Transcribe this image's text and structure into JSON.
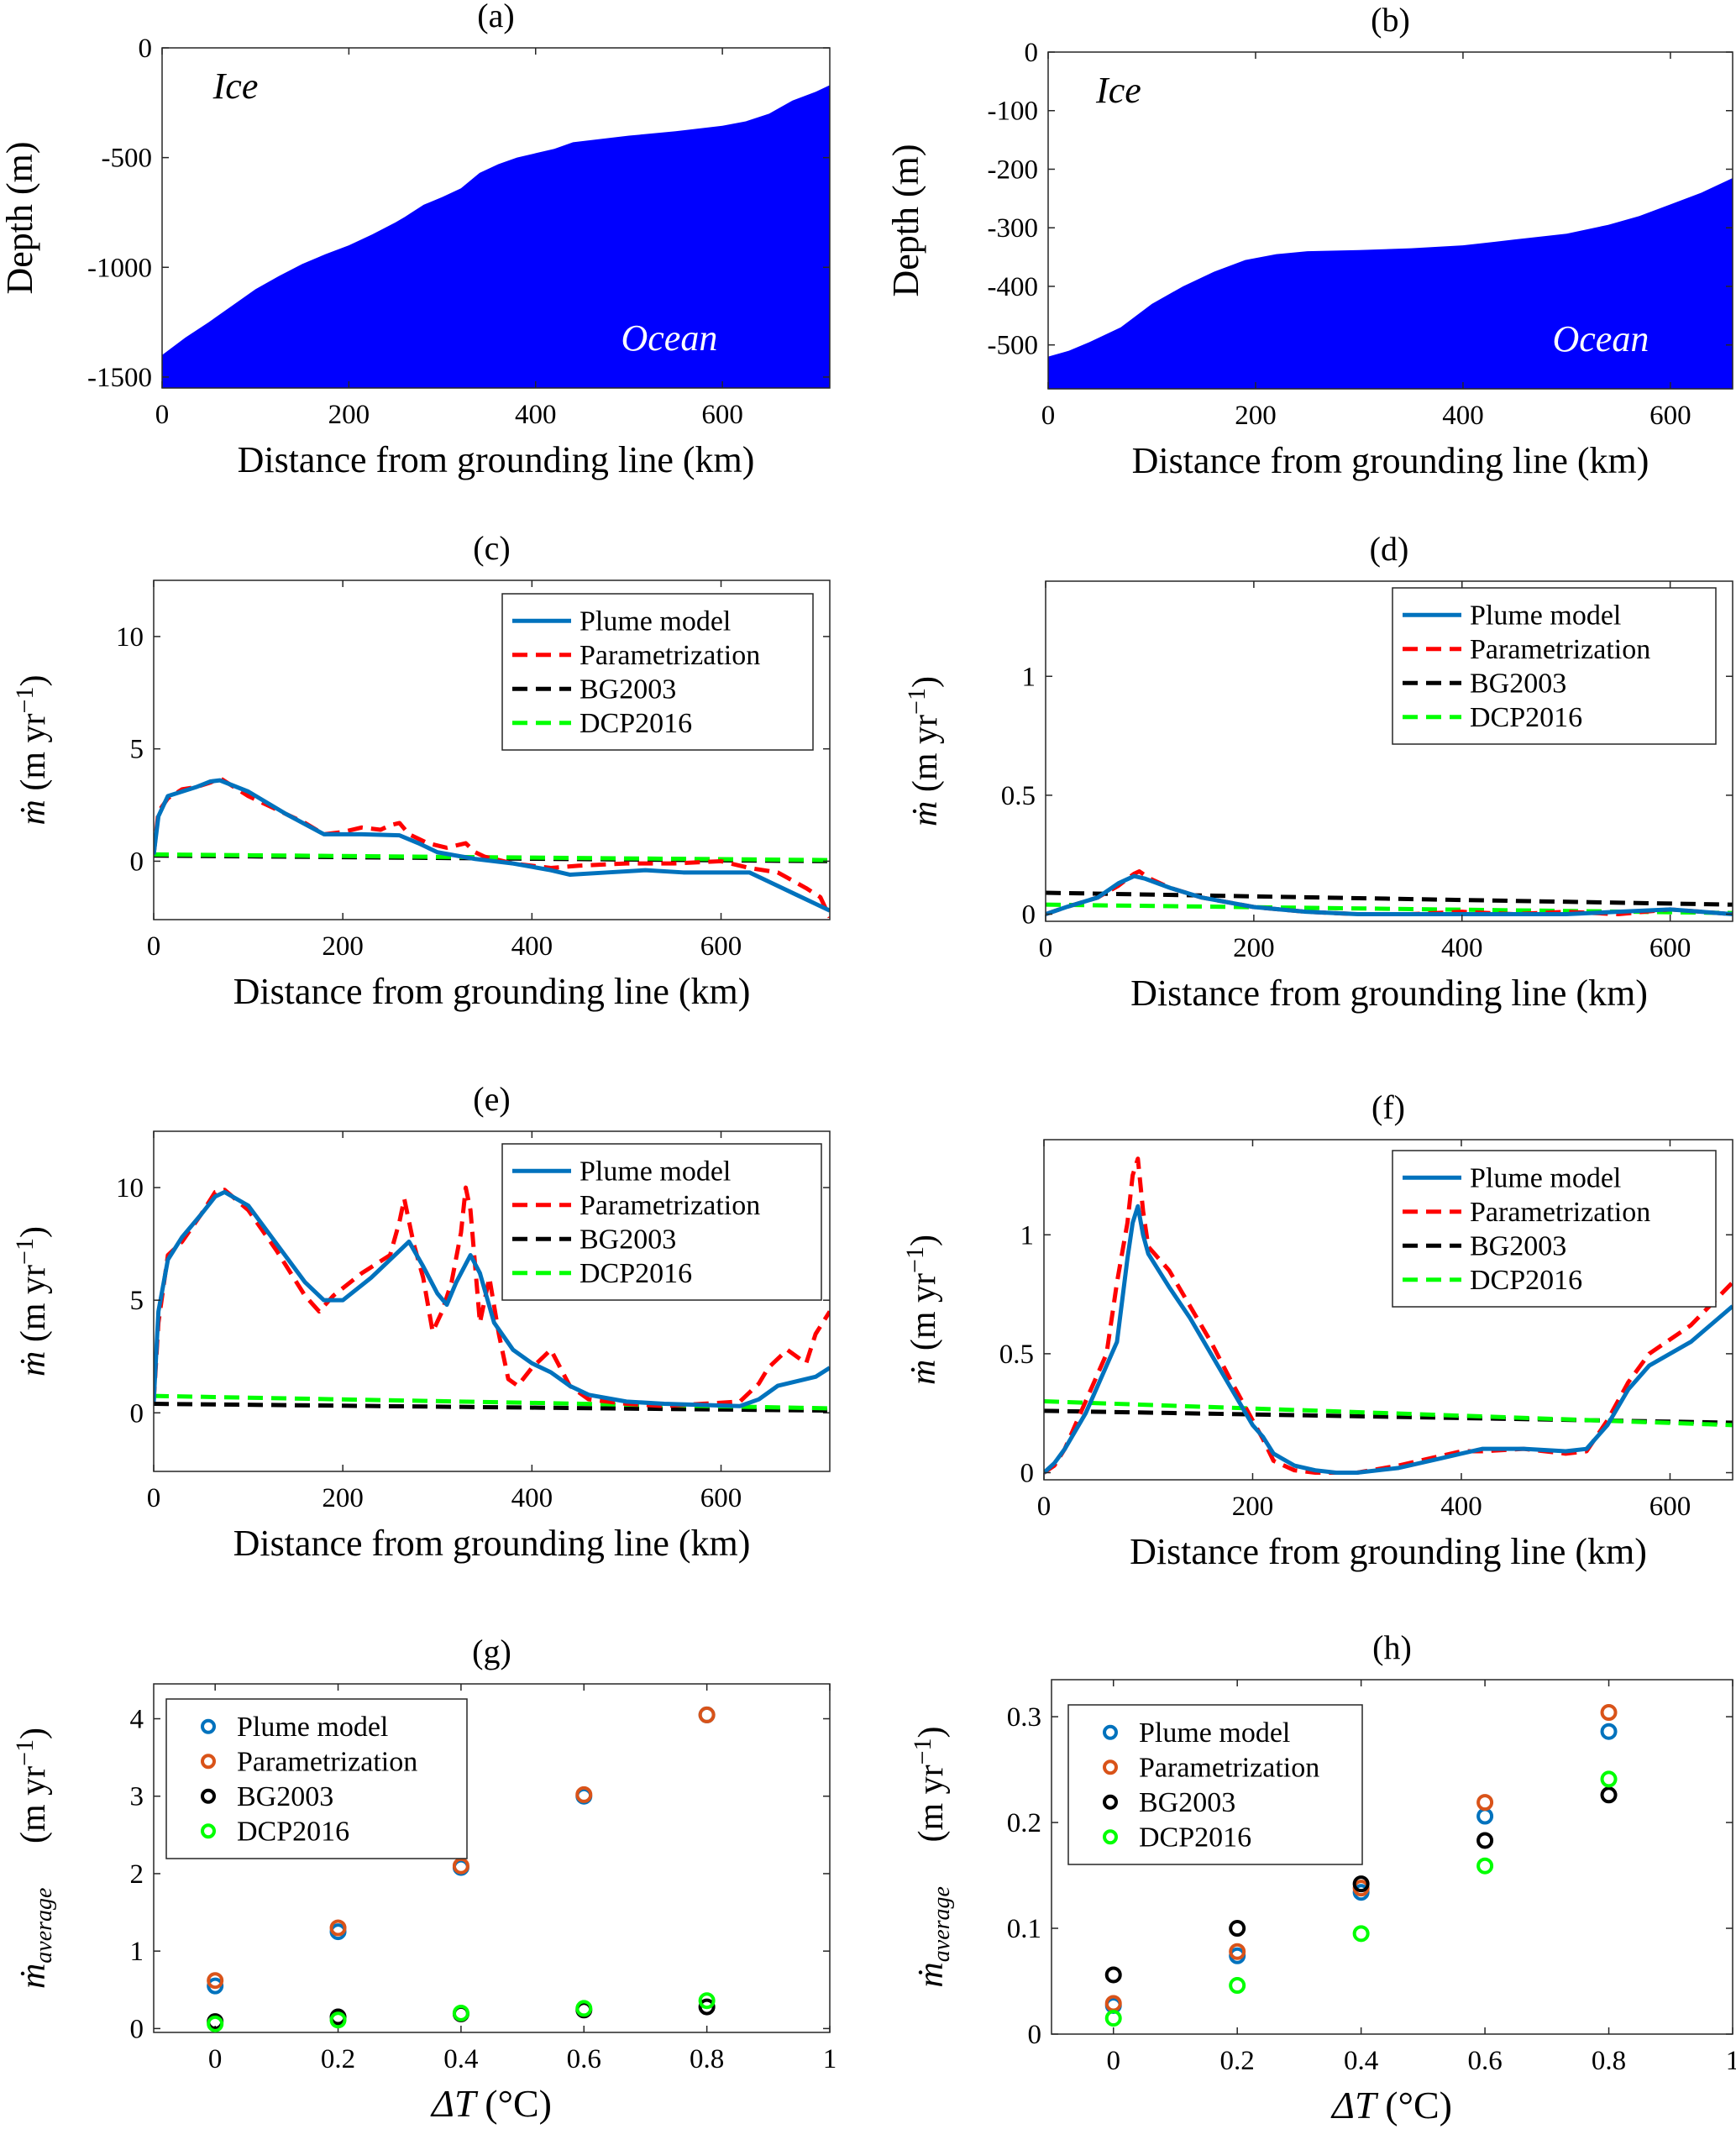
{
  "legend_labels": [
    "Plume model",
    "Parametrization",
    "BG2003",
    "DCP2016"
  ],
  "colors": {
    "ocean_fill": "#0000ff",
    "plume_model": "#0072bd",
    "parametrization": "#ff0000",
    "bg2003": "#000000",
    "dcp2016": "#00ff00",
    "scatter_parametrization": "#d95319"
  },
  "chart_data": [
    {
      "id": "a",
      "type": "area",
      "title": "(a)",
      "xlabel": "Distance from grounding line (km)",
      "ylabel": "Depth (m)",
      "xlim": [
        0,
        715
      ],
      "ylim": [
        -1550,
        0
      ],
      "xticks": [
        "0",
        "200",
        "400",
        "600"
      ],
      "xtick_values": [
        0,
        200,
        400,
        600
      ],
      "yticks": [
        "0",
        "-500",
        "-1000",
        "-1500"
      ],
      "ytick_values": [
        0,
        -500,
        -1000,
        -1500
      ],
      "annotations": [
        "Ice",
        "Ocean"
      ],
      "x": [
        0,
        25,
        50,
        75,
        100,
        125,
        150,
        175,
        200,
        225,
        250,
        260,
        280,
        300,
        320,
        340,
        360,
        380,
        400,
        420,
        440,
        460,
        500,
        550,
        600,
        625,
        650,
        675,
        700,
        715
      ],
      "values": [
        -1400,
        -1320,
        -1250,
        -1175,
        -1100,
        -1040,
        -985,
        -940,
        -900,
        -850,
        -795,
        -770,
        -715,
        -680,
        -640,
        -570,
        -530,
        -500,
        -480,
        -460,
        -430,
        -420,
        -400,
        -380,
        -355,
        -335,
        -300,
        -240,
        -200,
        -170
      ]
    },
    {
      "id": "b",
      "type": "area",
      "title": "(b)",
      "xlabel": "Distance from grounding line (km)",
      "ylabel": "Depth (m)",
      "xlim": [
        0,
        660
      ],
      "ylim": [
        -575,
        0
      ],
      "xticks": [
        "0",
        "200",
        "400",
        "600"
      ],
      "xtick_values": [
        0,
        200,
        400,
        600
      ],
      "yticks": [
        "0",
        "-100",
        "-200",
        "-300",
        "-400",
        "-500"
      ],
      "ytick_values": [
        0,
        -100,
        -200,
        -300,
        -400,
        -500
      ],
      "annotations": [
        "Ice",
        "Ocean"
      ],
      "x": [
        0,
        20,
        40,
        70,
        100,
        130,
        160,
        190,
        220,
        250,
        300,
        350,
        400,
        450,
        500,
        540,
        570,
        600,
        630,
        660
      ],
      "values": [
        -520,
        -510,
        -495,
        -470,
        -430,
        -400,
        -375,
        -355,
        -345,
        -340,
        -338,
        -335,
        -330,
        -320,
        -310,
        -295,
        -280,
        -260,
        -240,
        -215
      ]
    },
    {
      "id": "c",
      "type": "line",
      "title": "(c)",
      "xlabel": "Distance from grounding line (km)",
      "ylabel": "ṁ (m yr⁻¹)",
      "xlim": [
        0,
        715
      ],
      "ylim": [
        -2.6,
        12.5
      ],
      "xticks": [
        "0",
        "200",
        "400",
        "600"
      ],
      "xtick_values": [
        0,
        200,
        400,
        600
      ],
      "yticks": [
        "0",
        "5",
        "10"
      ],
      "ytick_values": [
        0,
        5,
        10
      ],
      "legend": "top-right",
      "series": [
        {
          "name": "Plume model",
          "x": [
            0,
            5,
            15,
            30,
            45,
            60,
            70,
            100,
            140,
            180,
            220,
            260,
            280,
            300,
            340,
            380,
            420,
            440,
            480,
            520,
            560,
            600,
            630,
            650,
            680,
            700,
            715
          ],
          "values": [
            0.3,
            2.0,
            2.9,
            3.1,
            3.3,
            3.55,
            3.6,
            3.1,
            2.1,
            1.2,
            1.2,
            1.15,
            0.8,
            0.4,
            0.1,
            -0.1,
            -0.4,
            -0.6,
            -0.5,
            -0.4,
            -0.5,
            -0.5,
            -0.5,
            -0.9,
            -1.5,
            -1.9,
            -2.2
          ]
        },
        {
          "name": "Parametrization",
          "x": [
            0,
            5,
            15,
            30,
            45,
            60,
            70,
            100,
            130,
            160,
            180,
            200,
            220,
            240,
            250,
            260,
            270,
            290,
            310,
            330,
            340,
            350,
            380,
            420,
            450,
            500,
            550,
            600,
            630,
            660,
            690,
            705,
            715
          ],
          "values": [
            0.3,
            2.2,
            2.8,
            3.2,
            3.3,
            3.5,
            3.7,
            2.9,
            2.3,
            1.7,
            1.2,
            1.3,
            1.5,
            1.4,
            1.6,
            1.7,
            1.2,
            0.8,
            0.6,
            0.8,
            0.4,
            0.2,
            -0.1,
            -0.3,
            -0.2,
            -0.1,
            -0.1,
            0.0,
            -0.3,
            -0.5,
            -1.2,
            -1.6,
            -2.5
          ]
        },
        {
          "name": "BG2003",
          "x": [
            0,
            715
          ],
          "values": [
            0.25,
            0.0
          ]
        },
        {
          "name": "DCP2016",
          "x": [
            0,
            715
          ],
          "values": [
            0.3,
            0.05
          ]
        }
      ]
    },
    {
      "id": "d",
      "type": "line",
      "title": "(d)",
      "xlabel": "Distance from grounding line (km)",
      "ylabel": "ṁ (m yr⁻¹)",
      "xlim": [
        0,
        660
      ],
      "ylim": [
        -0.03,
        1.4
      ],
      "xticks": [
        "0",
        "200",
        "400",
        "600"
      ],
      "xtick_values": [
        0,
        200,
        400,
        600
      ],
      "yticks": [
        "0",
        "0.5",
        "1"
      ],
      "ytick_values": [
        0,
        0.5,
        1
      ],
      "legend": "top-right",
      "series": [
        {
          "name": "Plume model",
          "x": [
            0,
            20,
            50,
            70,
            85,
            95,
            120,
            150,
            200,
            250,
            300,
            350,
            400,
            450,
            500,
            550,
            600,
            630,
            660
          ],
          "values": [
            0.0,
            0.03,
            0.07,
            0.13,
            0.16,
            0.15,
            0.11,
            0.07,
            0.03,
            0.01,
            0.0,
            0.0,
            0.0,
            0.0,
            0.0,
            0.01,
            0.02,
            0.01,
            0.0
          ]
        },
        {
          "name": "Parametrization",
          "x": [
            0,
            20,
            50,
            70,
            85,
            90,
            100,
            120,
            150,
            200,
            250,
            300,
            350,
            400,
            450,
            500,
            550,
            600,
            630,
            660
          ],
          "values": [
            0.0,
            0.03,
            0.07,
            0.12,
            0.17,
            0.18,
            0.15,
            0.11,
            0.07,
            0.03,
            0.01,
            0.0,
            0.0,
            0.01,
            0.0,
            0.01,
            0.0,
            0.02,
            0.01,
            0.0
          ]
        },
        {
          "name": "BG2003",
          "x": [
            0,
            660
          ],
          "values": [
            0.09,
            0.04
          ]
        },
        {
          "name": "DCP2016",
          "x": [
            0,
            660
          ],
          "values": [
            0.04,
            0.005
          ]
        }
      ]
    },
    {
      "id": "e",
      "type": "line",
      "title": "(e)",
      "xlabel": "Distance from grounding line (km)",
      "ylabel": "ṁ (m yr⁻¹)",
      "xlim": [
        0,
        715
      ],
      "ylim": [
        -2.6,
        12.5
      ],
      "xticks": [
        "0",
        "200",
        "400",
        "600"
      ],
      "xtick_values": [
        0,
        200,
        400,
        600
      ],
      "yticks": [
        "0",
        "5",
        "10"
      ],
      "ytick_values": [
        0,
        5,
        10
      ],
      "legend": "top-right",
      "series": [
        {
          "name": "Plume model",
          "x": [
            0,
            5,
            15,
            30,
            50,
            65,
            75,
            100,
            130,
            160,
            180,
            200,
            230,
            260,
            270,
            285,
            300,
            310,
            320,
            335,
            345,
            360,
            380,
            400,
            420,
            440,
            460,
            500,
            540,
            580,
            620,
            640,
            660,
            680,
            700,
            715
          ],
          "values": [
            0.5,
            4.5,
            6.8,
            7.8,
            8.8,
            9.6,
            9.8,
            9.2,
            7.5,
            5.8,
            5.0,
            5.0,
            6.0,
            7.2,
            7.6,
            6.5,
            5.3,
            4.8,
            5.8,
            7.0,
            6.2,
            4.0,
            2.8,
            2.2,
            1.8,
            1.2,
            0.8,
            0.5,
            0.4,
            0.35,
            0.3,
            0.6,
            1.2,
            1.4,
            1.6,
            2.0
          ]
        },
        {
          "name": "Parametrization",
          "x": [
            0,
            5,
            15,
            30,
            50,
            65,
            75,
            100,
            130,
            160,
            175,
            190,
            220,
            250,
            260,
            265,
            275,
            285,
            295,
            305,
            315,
            325,
            330,
            335,
            345,
            355,
            365,
            375,
            385,
            400,
            420,
            440,
            460,
            500,
            540,
            580,
            620,
            640,
            650,
            670,
            690,
            700,
            715
          ],
          "values": [
            0.5,
            4.0,
            7.0,
            7.6,
            8.8,
            9.8,
            9.9,
            9.0,
            7.2,
            5.2,
            4.5,
            5.2,
            6.2,
            7.0,
            8.5,
            9.5,
            7.5,
            6.0,
            3.6,
            4.5,
            5.8,
            8.0,
            10.0,
            9.0,
            4.0,
            6.0,
            3.5,
            1.5,
            1.2,
            2.0,
            2.8,
            1.2,
            0.6,
            0.4,
            0.3,
            0.4,
            0.5,
            1.3,
            2.0,
            2.8,
            2.2,
            3.5,
            4.5
          ]
        },
        {
          "name": "BG2003",
          "x": [
            0,
            715
          ],
          "values": [
            0.4,
            0.1
          ]
        },
        {
          "name": "DCP2016",
          "x": [
            0,
            715
          ],
          "values": [
            0.75,
            0.2
          ]
        }
      ]
    },
    {
      "id": "f",
      "type": "line",
      "title": "(f)",
      "xlabel": "Distance from grounding line (km)",
      "ylabel": "ṁ (m yr⁻¹)",
      "xlim": [
        0,
        660
      ],
      "ylim": [
        -0.03,
        1.4
      ],
      "xticks": [
        "0",
        "200",
        "400",
        "600"
      ],
      "xtick_values": [
        0,
        200,
        400,
        600
      ],
      "yticks": [
        "0",
        "0.5",
        "1"
      ],
      "ytick_values": [
        0,
        0.5,
        1
      ],
      "legend": "top-right",
      "series": [
        {
          "name": "Plume model",
          "x": [
            0,
            10,
            20,
            40,
            60,
            70,
            80,
            85,
            90,
            95,
            100,
            120,
            140,
            160,
            180,
            200,
            210,
            220,
            240,
            260,
            280,
            300,
            340,
            380,
            400,
            420,
            460,
            500,
            520,
            540,
            560,
            580,
            620,
            660
          ],
          "values": [
            0.0,
            0.04,
            0.1,
            0.25,
            0.45,
            0.55,
            0.9,
            1.05,
            1.12,
            1.0,
            0.92,
            0.78,
            0.65,
            0.5,
            0.35,
            0.2,
            0.15,
            0.08,
            0.03,
            0.01,
            0.0,
            0.0,
            0.02,
            0.06,
            0.08,
            0.1,
            0.1,
            0.09,
            0.1,
            0.2,
            0.35,
            0.45,
            0.55,
            0.7
          ]
        },
        {
          "name": "Parametrization",
          "x": [
            0,
            10,
            20,
            40,
            60,
            70,
            80,
            85,
            90,
            95,
            100,
            110,
            120,
            140,
            160,
            180,
            200,
            210,
            220,
            240,
            260,
            280,
            300,
            340,
            380,
            400,
            420,
            460,
            500,
            520,
            540,
            560,
            580,
            620,
            660
          ],
          "values": [
            0.0,
            0.03,
            0.1,
            0.3,
            0.5,
            0.8,
            1.05,
            1.25,
            1.32,
            1.1,
            0.95,
            0.9,
            0.85,
            0.7,
            0.55,
            0.38,
            0.22,
            0.14,
            0.05,
            0.01,
            0.0,
            0.0,
            0.0,
            0.03,
            0.07,
            0.09,
            0.09,
            0.1,
            0.08,
            0.09,
            0.22,
            0.38,
            0.5,
            0.62,
            0.8
          ]
        },
        {
          "name": "BG2003",
          "x": [
            0,
            660
          ],
          "values": [
            0.26,
            0.21
          ]
        },
        {
          "name": "DCP2016",
          "x": [
            0,
            660
          ],
          "values": [
            0.3,
            0.2
          ]
        }
      ]
    },
    {
      "id": "g",
      "type": "scatter",
      "title": "(g)",
      "xlabel": "ΔT (°C)",
      "ylabel": "ṁaverage (m yr⁻¹)",
      "xlim": [
        -0.1,
        1.0
      ],
      "ylim": [
        -0.05,
        4.45
      ],
      "xticks": [
        "0",
        "0.2",
        "0.4",
        "0.6",
        "0.8",
        "1"
      ],
      "xtick_values": [
        0,
        0.2,
        0.4,
        0.6,
        0.8,
        1.0
      ],
      "yticks": [
        "0",
        "1",
        "2",
        "3",
        "4"
      ],
      "ytick_values": [
        0,
        1,
        2,
        3,
        4
      ],
      "legend": "top-left",
      "categories": [
        0,
        0.2,
        0.4,
        0.6,
        0.8
      ],
      "series": [
        {
          "name": "Plume model",
          "values": [
            0.55,
            1.25,
            2.08,
            3.0,
            4.05
          ]
        },
        {
          "name": "Parametrization",
          "values": [
            0.62,
            1.3,
            2.1,
            3.02,
            4.05
          ]
        },
        {
          "name": "BG2003",
          "values": [
            0.09,
            0.15,
            0.19,
            0.24,
            0.28
          ]
        },
        {
          "name": "DCP2016",
          "values": [
            0.06,
            0.11,
            0.2,
            0.26,
            0.36
          ]
        }
      ]
    },
    {
      "id": "h",
      "type": "scatter",
      "title": "(h)",
      "xlabel": "ΔT (°C)",
      "ylabel": "ṁaverage (m yr⁻¹)",
      "xlim": [
        -0.1,
        1.0
      ],
      "ylim": [
        0,
        0.335
      ],
      "xticks": [
        "0",
        "0.2",
        "0.4",
        "0.6",
        "0.8",
        "1"
      ],
      "xtick_values": [
        0,
        0.2,
        0.4,
        0.6,
        0.8,
        1.0
      ],
      "yticks": [
        "0",
        "0.1",
        "0.2",
        "0.3"
      ],
      "ytick_values": [
        0,
        0.1,
        0.2,
        0.3
      ],
      "legend": "top-left",
      "categories": [
        0,
        0.2,
        0.4,
        0.6,
        0.8
      ],
      "series": [
        {
          "name": "Plume model",
          "values": [
            0.027,
            0.074,
            0.134,
            0.206,
            0.286
          ]
        },
        {
          "name": "Parametrization",
          "values": [
            0.029,
            0.078,
            0.138,
            0.219,
            0.304
          ]
        },
        {
          "name": "BG2003",
          "values": [
            0.056,
            0.1,
            0.142,
            0.183,
            0.226
          ]
        },
        {
          "name": "DCP2016",
          "values": [
            0.015,
            0.046,
            0.095,
            0.159,
            0.241
          ]
        }
      ]
    }
  ]
}
